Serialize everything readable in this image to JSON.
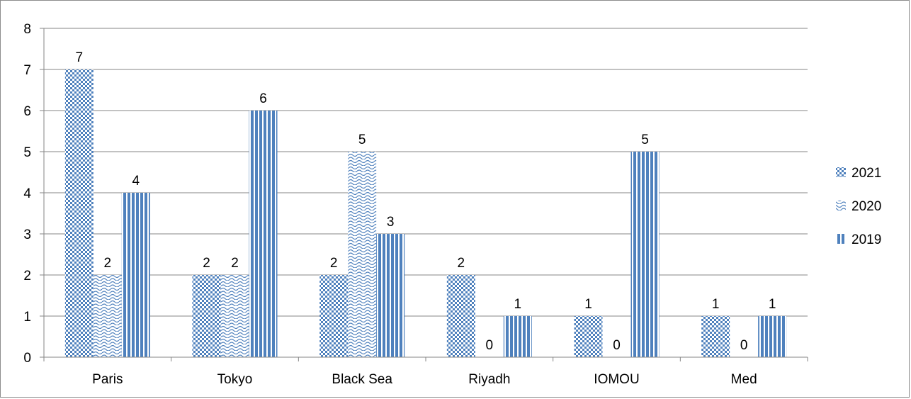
{
  "chart_data": {
    "type": "bar",
    "title": "",
    "xlabel": "",
    "ylabel": "",
    "categories": [
      "Paris",
      "Tokyo",
      "Black Sea",
      "Riyadh",
      "IOMOU",
      "Med"
    ],
    "series": [
      {
        "name": "2021",
        "values": [
          7,
          2,
          2,
          2,
          1,
          1
        ],
        "pattern": "checker"
      },
      {
        "name": "2020",
        "values": [
          2,
          2,
          5,
          0,
          0,
          0
        ],
        "pattern": "wave"
      },
      {
        "name": "2019",
        "values": [
          4,
          6,
          3,
          1,
          5,
          1
        ],
        "pattern": "vertical-stripes"
      }
    ],
    "ylim": [
      0,
      8
    ],
    "yticks": [
      "0",
      "1",
      "2",
      "3",
      "4",
      "5",
      "6",
      "7",
      "8"
    ],
    "grid": true,
    "legend_position": "right",
    "data_labels": true,
    "colors": {
      "bar": "#4f81bd",
      "grid": "#868686",
      "axis": "#868686"
    }
  }
}
